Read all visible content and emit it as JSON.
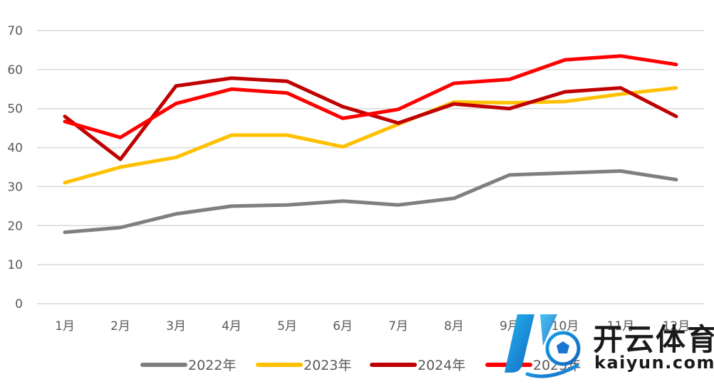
{
  "chart_data": {
    "type": "line",
    "title": "",
    "xlabel": "",
    "ylabel": "",
    "categories": [
      "1月",
      "2月",
      "3月",
      "4月",
      "5月",
      "6月",
      "7月",
      "8月",
      "9月",
      "10月",
      "11月",
      "12月"
    ],
    "ylim": [
      0,
      70
    ],
    "yticks": [
      0,
      10,
      20,
      30,
      40,
      50,
      60,
      70
    ],
    "grid": true,
    "legend_position": "bottom",
    "series": [
      {
        "name": "2022年",
        "color": "#7f7f7f",
        "values": [
          18.3,
          19.5,
          23.0,
          25.0,
          25.3,
          26.3,
          25.3,
          27.0,
          33.0,
          33.5,
          34.0,
          31.8
        ]
      },
      {
        "name": "2023年",
        "color": "#ffc000",
        "values": [
          31.0,
          35.0,
          37.5,
          43.2,
          43.2,
          40.2,
          46.0,
          51.7,
          51.5,
          51.8,
          53.7,
          55.3
        ]
      },
      {
        "name": "2024年",
        "color": "#c00000",
        "values": [
          48.0,
          37.0,
          55.8,
          57.8,
          57.0,
          50.5,
          46.3,
          51.2,
          50.0,
          54.3,
          55.3,
          48.0
        ]
      },
      {
        "name": "2025年",
        "color": "#ff0000",
        "values": [
          46.7,
          42.6,
          51.3,
          55.0,
          54.0,
          47.5,
          49.8,
          56.5,
          57.5,
          62.5,
          63.5,
          61.3
        ]
      }
    ]
  },
  "watermark": {
    "brand": "开云体育",
    "domain": "kaiyun.com"
  }
}
